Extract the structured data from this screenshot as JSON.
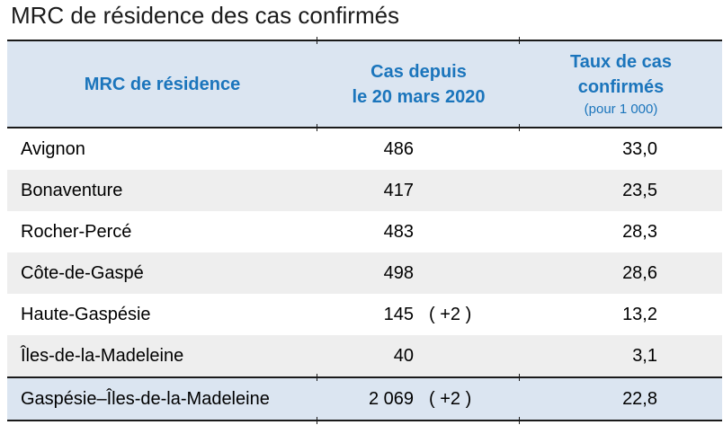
{
  "title": "MRC de résidence des cas confirmés",
  "colors": {
    "header_background": "#dbe5f1",
    "total_row_background": "#dbe5f1",
    "alternate_row_background": "#eeeeee",
    "header_text_blue": "#1b75bc",
    "rule_line": "#1a1a1a"
  },
  "table": {
    "headers": {
      "col1": "MRC de résidence",
      "col2_line1": "Cas depuis",
      "col2_line2": "le 20 mars 2020",
      "col3_line1": "Taux de cas",
      "col3_line2": "confirmés",
      "col3_note": "(pour 1 000)"
    },
    "rows": [
      {
        "mrc": "Avignon",
        "cases": "486",
        "delta": "",
        "rate": "33,0"
      },
      {
        "mrc": "Bonaventure",
        "cases": "417",
        "delta": "",
        "rate": "23,5"
      },
      {
        "mrc": "Rocher-Percé",
        "cases": "483",
        "delta": "",
        "rate": "28,3"
      },
      {
        "mrc": "Côte-de-Gaspé",
        "cases": "498",
        "delta": "",
        "rate": "28,6"
      },
      {
        "mrc": "Haute-Gaspésie",
        "cases": "145",
        "delta": "( +2 )",
        "rate": "13,2"
      },
      {
        "mrc": "Îles-de-la-Madeleine",
        "cases": "40",
        "delta": "",
        "rate": "3,1"
      }
    ],
    "total_row": {
      "mrc": "Gaspésie–Îles-de-la-Madeleine",
      "cases": "2 069",
      "delta": "( +2 )",
      "rate": "22,8"
    }
  },
  "chart_data": {
    "type": "table",
    "title": "MRC de résidence des cas confirmés",
    "columns": [
      "MRC de résidence",
      "Cas depuis le 20 mars 2020",
      "Taux de cas confirmés (pour 1 000)"
    ],
    "rows": [
      [
        "Avignon",
        "486",
        "33,0"
      ],
      [
        "Bonaventure",
        "417",
        "23,5"
      ],
      [
        "Rocher-Percé",
        "483",
        "28,3"
      ],
      [
        "Côte-de-Gaspé",
        "498",
        "28,6"
      ],
      [
        "Haute-Gaspésie",
        "145 ( +2 )",
        "13,2"
      ],
      [
        "Îles-de-la-Madeleine",
        "40",
        "3,1"
      ],
      [
        "Gaspésie–Îles-de-la-Madeleine",
        "2 069 ( +2 )",
        "22,8"
      ]
    ]
  }
}
